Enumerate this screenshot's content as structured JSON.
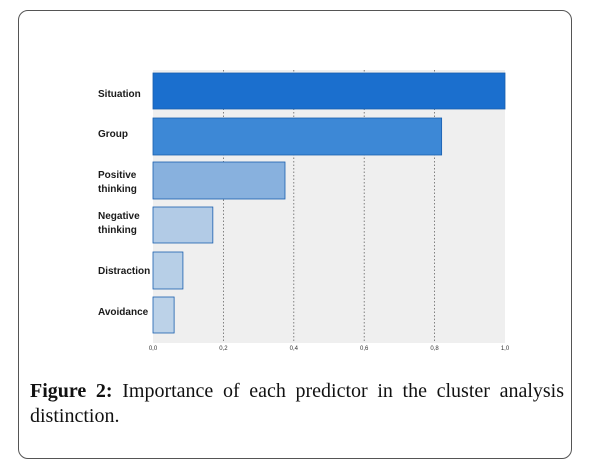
{
  "caption": {
    "label": "Figure 2:",
    "text": " Importance of each predictor in the cluster analysis distinction."
  },
  "chart_data": {
    "type": "bar",
    "orientation": "horizontal",
    "title": "",
    "xlabel": "",
    "ylabel": "",
    "categories": [
      [
        "Situation"
      ],
      [
        "Group"
      ],
      [
        "Positive",
        "thinking"
      ],
      [
        "Negative",
        "thinking"
      ],
      [
        "Distraction"
      ],
      [
        "Avoidance"
      ]
    ],
    "values": [
      1.0,
      0.82,
      0.375,
      0.17,
      0.085,
      0.06
    ],
    "colors": [
      "#1b6fce",
      "#3d88d6",
      "#88b1de",
      "#b2cbe6",
      "#b7cfe7",
      "#bcd2e8"
    ],
    "xlim": [
      0,
      1.0
    ],
    "x_ticks": [
      "0,0",
      "0,2",
      "0,4",
      "0,6",
      "0,8",
      "1,0"
    ],
    "grid": true,
    "plot_background": "#efefef",
    "grid_color": "#666666",
    "bar_edge_color": "#1a5fae"
  }
}
